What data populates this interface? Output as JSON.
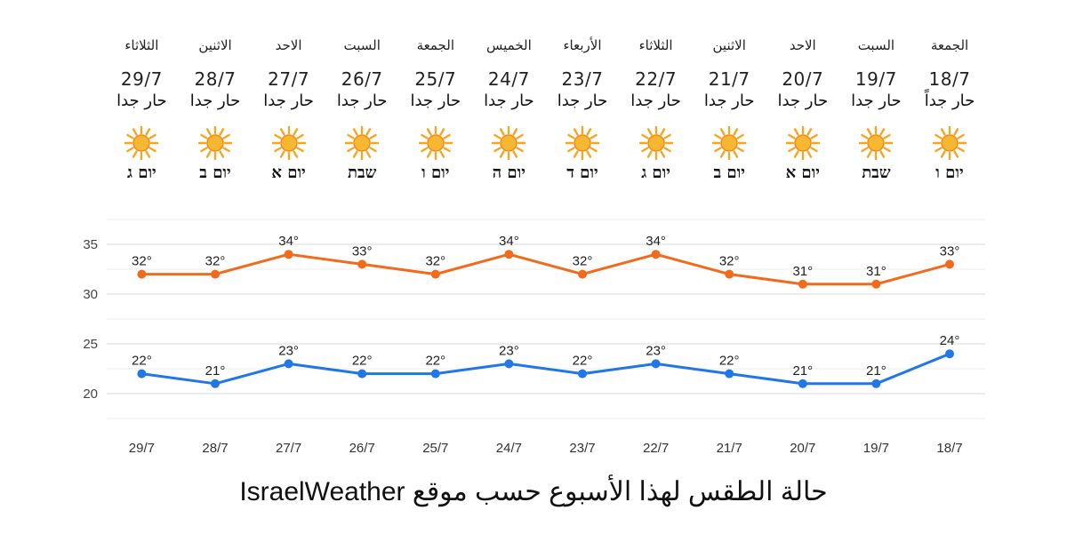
{
  "forecast": [
    {
      "day": "الجمعة",
      "date": "18/7",
      "condition": "حار جداً",
      "hebrew": "יום ו"
    },
    {
      "day": "السبت",
      "date": "19/7",
      "condition": "حار جدا",
      "hebrew": "שבת"
    },
    {
      "day": "الاحد",
      "date": "20/7",
      "condition": "حار جدا",
      "hebrew": "יום א"
    },
    {
      "day": "الاثنين",
      "date": "21/7",
      "condition": "حار جدا",
      "hebrew": "יום ב"
    },
    {
      "day": "الثلاثاء",
      "date": "22/7",
      "condition": "حار جدا",
      "hebrew": "יום ג"
    },
    {
      "day": "الأربعاء",
      "date": "23/7",
      "condition": "حار جدا",
      "hebrew": "יום ד"
    },
    {
      "day": "الخميس",
      "date": "24/7",
      "condition": "حار جدا",
      "hebrew": "יום ה"
    },
    {
      "day": "الجمعة",
      "date": "25/7",
      "condition": "حار جدا",
      "hebrew": "יום ו"
    },
    {
      "day": "السبت",
      "date": "26/7",
      "condition": "حار جدا",
      "hebrew": "שבת"
    },
    {
      "day": "الاحد",
      "date": "27/7",
      "condition": "حار جدا",
      "hebrew": "יום א"
    },
    {
      "day": "الاثنين",
      "date": "28/7",
      "condition": "حار جدا",
      "hebrew": "יום ב"
    },
    {
      "day": "الثلاثاء",
      "date": "29/7",
      "condition": "حار جدا",
      "hebrew": "יום ג"
    }
  ],
  "icon": "sun-icon",
  "chart_data": {
    "type": "line",
    "categories": [
      "18/7",
      "19/7",
      "20/7",
      "21/7",
      "22/7",
      "23/7",
      "24/7",
      "25/7",
      "26/7",
      "27/7",
      "28/7",
      "29/7"
    ],
    "x_direction": "right-to-left",
    "series": [
      {
        "values": [
          33,
          31,
          31,
          32,
          34,
          32,
          34,
          32,
          33,
          34,
          32,
          32
        ],
        "color": "#f26b1d"
      },
      {
        "values": [
          24,
          21,
          21,
          22,
          23,
          22,
          23,
          22,
          22,
          23,
          21,
          22
        ],
        "color": "#2176e8"
      }
    ],
    "yticks": [
      20,
      25,
      30,
      35
    ],
    "ylim": [
      17.5,
      37.5
    ],
    "grid": true,
    "label_suffix": "°"
  },
  "footer": "حالة الطقس لهذا الأسبوع حسب موقع IsraelWeather"
}
